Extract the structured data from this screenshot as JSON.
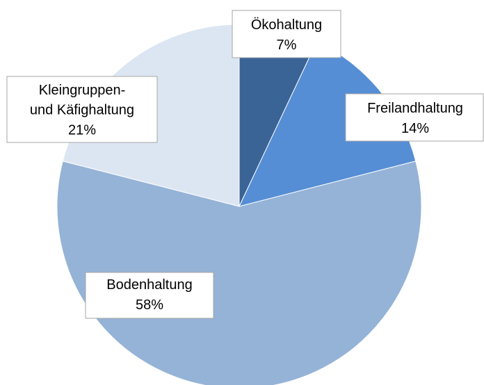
{
  "chart_data": {
    "type": "pie",
    "categories": [
      "Ökohaltung",
      "Freilandhaltung",
      "Bodenhaltung",
      "Kleingruppen-\nund Käfighaltung"
    ],
    "values": [
      7,
      14,
      58,
      21
    ],
    "value_labels": [
      "7%",
      "14%",
      "58%",
      "21%"
    ],
    "colors": [
      "#3b6496",
      "#558ed5",
      "#95b3d7",
      "#dce6f2"
    ]
  }
}
